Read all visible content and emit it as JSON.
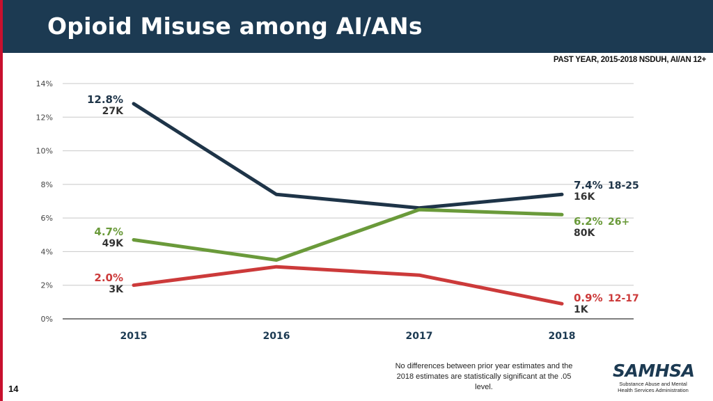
{
  "slide": {
    "title": "Opioid Misuse among AI/ANs",
    "subtitle": "PAST YEAR, 2015-2018 NSDUH, AI/AN 12+",
    "footnote": "No differences between prior year estimates and the 2018 estimates are statistically significant at the .05 level.",
    "page_number": "14",
    "logo_text": "SAMHSA",
    "logo_subtext": "Substance Abuse and Mental Health Services Administration"
  },
  "colors": {
    "title_bar": "#1c3a52",
    "series_18_25": "#1e3448",
    "series_26_plus": "#6a9a3a",
    "series_12_17": "#cc3a3a"
  },
  "chart_data": {
    "type": "line",
    "title": "Opioid Misuse among AI/ANs",
    "categories": [
      "2015",
      "2016",
      "2017",
      "2018"
    ],
    "ylim": [
      0,
      14
    ],
    "yticks": [
      "0%",
      "2%",
      "4%",
      "6%",
      "8%",
      "10%",
      "12%",
      "14%"
    ],
    "grid": true,
    "series": [
      {
        "name": "18-25",
        "color": "#1e3448",
        "values": [
          12.8,
          7.4,
          6.6,
          7.4
        ],
        "start_label": "12.8%",
        "start_count": "27K",
        "end_label": "7.4%",
        "end_count": "16K"
      },
      {
        "name": "26+",
        "color": "#6a9a3a",
        "values": [
          4.7,
          3.5,
          6.5,
          6.2
        ],
        "start_label": "4.7%",
        "start_count": "49K",
        "end_label": "6.2%",
        "end_count": "80K"
      },
      {
        "name": "12-17",
        "color": "#cc3a3a",
        "values": [
          2.0,
          3.1,
          2.6,
          0.9
        ],
        "start_label": "2.0%",
        "start_count": "3K",
        "end_label": "0.9%",
        "end_count": "1K"
      }
    ]
  }
}
